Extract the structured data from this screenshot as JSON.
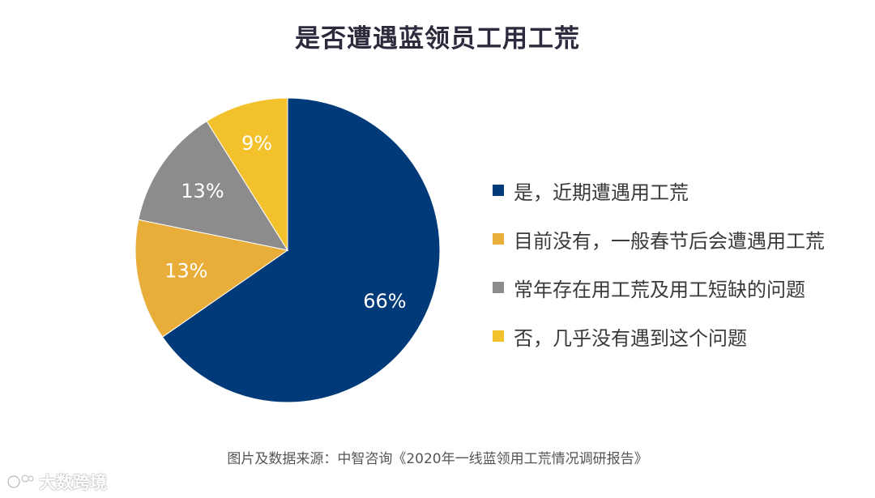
{
  "chart_data": {
    "type": "pie",
    "title": "是否遭遇蓝领员工用工荒",
    "slices": [
      {
        "label": "是，近期遭遇用工荒",
        "value": 66,
        "display": "66%",
        "color": "#003a78"
      },
      {
        "label": "目前没有，一般春节后会遭遇用工荒",
        "value": 13,
        "display": "13%",
        "color": "#e9ad3a"
      },
      {
        "label": "常年存在用工荒及用工短缺的问题",
        "value": 13,
        "display": "13%",
        "color": "#8c8c8c"
      },
      {
        "label": "否，几乎没有遇到这个问题",
        "value": 9,
        "display": "9%",
        "color": "#f3c12b"
      }
    ],
    "legend_position": "right"
  },
  "source": "图片及数据来源：中智咨询《2020年一线蓝领用工荒情况调研报告》",
  "watermark": {
    "text": "大数跨境",
    "icon": "logo-icon"
  }
}
